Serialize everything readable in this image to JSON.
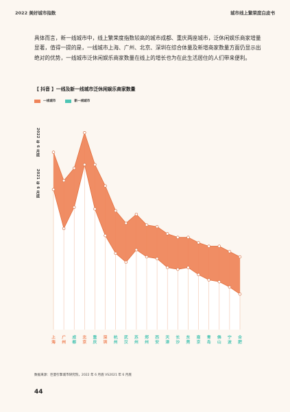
{
  "header": {
    "left": "2022 美好城市指数",
    "right": "城市线上繁荣度白皮书"
  },
  "body_text": "具体而言，新一线城市中，线上繁荣度指数较高的城市成都、重庆两座城市，泛休闲娱乐商家增量显著，值得一提的是，一线城市上海、广州、北京、深圳在综合体量及新增商家数量方面仍显示出绝对的优势，一线城市泛休闲娱乐商家数量在线上的增长也为在此生活居住的人们带来便利。",
  "chart_title": "【 抖音 】一线及新一线城市泛休闲娱乐商家数量",
  "legend": {
    "first_tier": "一线城市",
    "new_first_tier": "新一线城市"
  },
  "axis_side": {
    "top_label": "2022 年 6 月底",
    "bottom_label": "2021 年 6 月底"
  },
  "colors": {
    "first_tier": "#ef8358",
    "new_first_tier": "#4cc5b4",
    "band": "#ef8358",
    "grid": "#f2c4ac"
  },
  "chart_data": {
    "type": "line",
    "categories": [
      "上海",
      "广州",
      "成都",
      "北京",
      "重庆",
      "深圳",
      "杭州",
      "武汉",
      "苏州",
      "郑州",
      "西安",
      "天津",
      "长沙",
      "东莞",
      "南京",
      "青岛",
      "佛山",
      "宁波",
      "合肥"
    ],
    "tier": [
      "first",
      "first",
      "new",
      "first",
      "new",
      "first",
      "new",
      "new",
      "new",
      "new",
      "new",
      "new",
      "new",
      "new",
      "new",
      "new",
      "new",
      "new",
      "new"
    ],
    "series": [
      {
        "name": "2022 年 6 月底",
        "values": [
          100,
          84,
          91,
          111,
          93,
          81,
          67,
          60,
          65,
          59,
          58,
          54,
          52,
          52,
          49,
          47,
          47,
          44,
          41
        ]
      },
      {
        "name": "2021 年 6 月底",
        "values": [
          79,
          57,
          69,
          93,
          68,
          53,
          43,
          38,
          45,
          41,
          40,
          35,
          34,
          35,
          31,
          28,
          27,
          24,
          20
        ]
      }
    ],
    "ylim": [
      0,
      120
    ]
  },
  "source": "数据来源：巨量引擎城市研究院，2022 年 6 月底 VS2021 年 6 月底",
  "page_number": "44"
}
